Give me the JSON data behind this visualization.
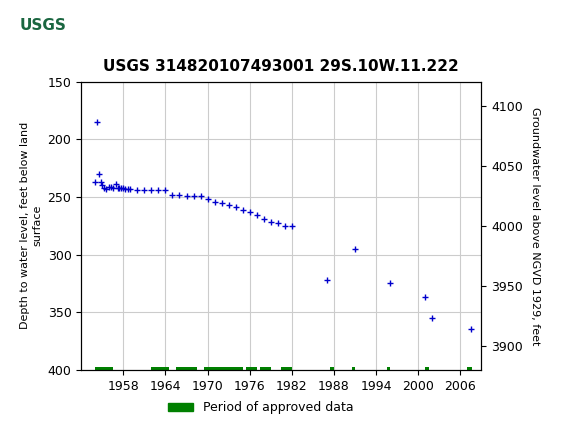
{
  "title": "USGS 314820107493001 29S.10W.11.222",
  "xlabel_years": [
    1958,
    1964,
    1970,
    1976,
    1982,
    1988,
    1994,
    2000,
    2006
  ],
  "ylabel_left": "Depth to water level, feet below land\nsurface",
  "ylabel_right": "Groundwater level above NGVD 1929, feet",
  "ylim_left": [
    400,
    150
  ],
  "ylim_right": [
    3880,
    4120
  ],
  "yticks_left": [
    150,
    200,
    250,
    300,
    350,
    400
  ],
  "yticks_right": [
    3900,
    3950,
    4000,
    4050,
    4100
  ],
  "xlim": [
    1952,
    2009
  ],
  "header_bg": "#1a6640",
  "plot_bg": "#ffffff",
  "grid_color": "#cccccc",
  "data_color": "#0000cc",
  "legend_color": "#008000",
  "legend_label": "Period of approved data",
  "blue_data": [
    [
      1954.0,
      237
    ],
    [
      1954.2,
      185
    ],
    [
      1954.5,
      230
    ],
    [
      1954.8,
      237
    ],
    [
      1955.0,
      240
    ],
    [
      1955.3,
      242
    ],
    [
      1955.6,
      243
    ],
    [
      1956.0,
      241
    ],
    [
      1956.3,
      241
    ],
    [
      1956.6,
      242
    ],
    [
      1957.0,
      239
    ],
    [
      1957.2,
      242
    ],
    [
      1957.4,
      242
    ],
    [
      1957.7,
      242
    ],
    [
      1958.0,
      242
    ],
    [
      1958.3,
      243
    ],
    [
      1958.6,
      243
    ],
    [
      1959.0,
      243
    ],
    [
      1960.0,
      244
    ],
    [
      1961.0,
      244
    ],
    [
      1962.0,
      244
    ],
    [
      1963.0,
      244
    ],
    [
      1964.0,
      244
    ],
    [
      1965.0,
      248
    ],
    [
      1966.0,
      248
    ],
    [
      1967.0,
      249
    ],
    [
      1968.0,
      249
    ],
    [
      1969.0,
      249
    ],
    [
      1970.0,
      252
    ],
    [
      1971.0,
      254
    ],
    [
      1972.0,
      255
    ],
    [
      1973.0,
      257
    ],
    [
      1974.0,
      259
    ],
    [
      1975.0,
      261
    ],
    [
      1976.0,
      263
    ],
    [
      1977.0,
      266
    ],
    [
      1978.0,
      269
    ],
    [
      1979.0,
      272
    ],
    [
      1980.0,
      273
    ],
    [
      1981.0,
      275
    ],
    [
      1982.0,
      275
    ],
    [
      1987.0,
      322
    ],
    [
      1991.0,
      295
    ],
    [
      1996.0,
      325
    ],
    [
      2001.0,
      337
    ],
    [
      2002.0,
      355
    ],
    [
      2007.5,
      365
    ]
  ],
  "green_bars": [
    [
      1954.0,
      1956.5
    ],
    [
      1962.0,
      1964.5
    ],
    [
      1965.5,
      1968.5
    ],
    [
      1969.5,
      1975.0
    ],
    [
      1975.5,
      1977.0
    ],
    [
      1977.5,
      1979.0
    ],
    [
      1980.5,
      1982.0
    ],
    [
      1987.5,
      1988.0
    ],
    [
      1990.5,
      1991.0
    ],
    [
      1995.5,
      1996.0
    ],
    [
      2001.0,
      2001.5
    ],
    [
      2007.0,
      2007.7
    ]
  ]
}
